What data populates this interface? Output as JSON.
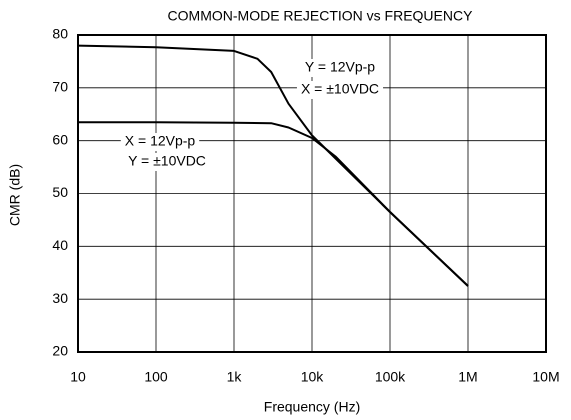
{
  "chart_data": {
    "type": "line",
    "title": "COMMON-MODE REJECTION vs FREQUENCY",
    "x_label": "Frequency (Hz)",
    "y_label": "CMR (dB)",
    "x_scale": "log",
    "grid": true,
    "xlim": [
      10,
      10000000
    ],
    "ylim": [
      20,
      80
    ],
    "xticks": [
      10,
      100,
      {
        "value": 1000,
        "label": "1k"
      },
      {
        "value": 10000,
        "label": "10k"
      },
      {
        "value": 100000,
        "label": "100k"
      },
      {
        "value": 1000000,
        "label": "1M"
      },
      {
        "value": 10000000,
        "label": "10M"
      }
    ],
    "yticks": [
      20,
      30,
      40,
      50,
      60,
      70,
      80
    ],
    "series": [
      {
        "color": "#000000",
        "x": [
          10,
          100,
          1000,
          2000,
          3000,
          5000,
          10000,
          100000,
          1000000
        ],
        "values": [
          78,
          77.7,
          77,
          75.5,
          73,
          67,
          61,
          46.5,
          32.5
        ]
      },
      {
        "color": "#000000",
        "x": [
          10,
          100,
          1000,
          3000,
          5000,
          10000,
          20000,
          100000,
          1000000
        ],
        "values": [
          63.5,
          63.5,
          63.4,
          63.3,
          62.5,
          60.5,
          57,
          46.5,
          32.5
        ]
      }
    ],
    "annotations": [
      "Y = 12Vp-p",
      "X = ±10VDC",
      "X = 12Vp-p",
      "Y = ±10VDC"
    ]
  }
}
